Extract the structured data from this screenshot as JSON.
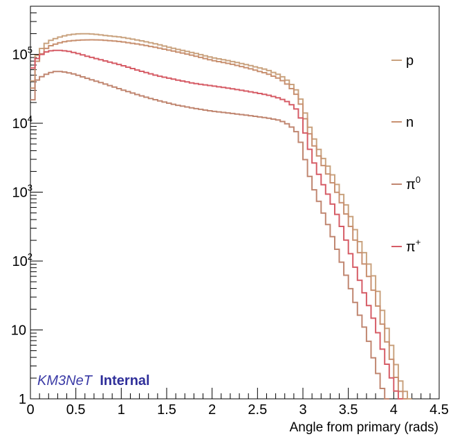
{
  "chart_data": {
    "type": "line",
    "step": true,
    "xlabel": "Angle from primary (rads)",
    "ylabel": "",
    "xlim": [
      0,
      4.5
    ],
    "ylim": [
      1,
      500000
    ],
    "yscale": "log",
    "grid": false,
    "legend_position": "right",
    "watermark": {
      "part1": "KM3NeT",
      "part2": "Internal"
    },
    "x_ticks": [
      {
        "value": 0,
        "label": "0"
      },
      {
        "value": 0.5,
        "label": "0.5"
      },
      {
        "value": 1,
        "label": "1"
      },
      {
        "value": 1.5,
        "label": "1.5"
      },
      {
        "value": 2,
        "label": "2"
      },
      {
        "value": 2.5,
        "label": "2.5"
      },
      {
        "value": 3,
        "label": "3"
      },
      {
        "value": 3.5,
        "label": "3.5"
      },
      {
        "value": 4,
        "label": "4"
      },
      {
        "value": 4.5,
        "label": "4.5"
      }
    ],
    "y_ticks": [
      {
        "value": 1,
        "label": "1",
        "sup": ""
      },
      {
        "value": 10,
        "label": "10",
        "sup": ""
      },
      {
        "value": 100,
        "label": "10",
        "sup": "2"
      },
      {
        "value": 1000,
        "label": "10",
        "sup": "3"
      },
      {
        "value": 10000,
        "label": "10",
        "sup": "4"
      },
      {
        "value": 100000,
        "label": "10",
        "sup": "5"
      }
    ],
    "bin_width": 0.05,
    "series": [
      {
        "name": "p",
        "sup": "",
        "color": "#c9a27e",
        "points": [
          [
            0,
            20000
          ],
          [
            0.05,
            85000
          ],
          [
            0.1,
            110000
          ],
          [
            0.15,
            135000
          ],
          [
            0.2,
            155000
          ],
          [
            0.3,
            175000
          ],
          [
            0.4,
            190000
          ],
          [
            0.5,
            198000
          ],
          [
            0.6,
            200000
          ],
          [
            0.7,
            197000
          ],
          [
            0.8,
            190000
          ],
          [
            1.0,
            178000
          ],
          [
            1.2,
            160000
          ],
          [
            1.4,
            140000
          ],
          [
            1.6,
            120000
          ],
          [
            1.8,
            105000
          ],
          [
            2.0,
            90000
          ],
          [
            2.2,
            80000
          ],
          [
            2.4,
            70000
          ],
          [
            2.6,
            60000
          ],
          [
            2.75,
            50000
          ],
          [
            2.85,
            40000
          ],
          [
            2.95,
            28000
          ],
          [
            3.0,
            18000
          ],
          [
            3.05,
            11000
          ],
          [
            3.1,
            7000
          ],
          [
            3.15,
            5000
          ],
          [
            3.2,
            3500
          ],
          [
            3.3,
            2100
          ],
          [
            3.4,
            1100
          ],
          [
            3.5,
            550
          ],
          [
            3.6,
            230
          ],
          [
            3.7,
            110
          ],
          [
            3.8,
            50
          ],
          [
            3.9,
            14
          ],
          [
            4.0,
            4.5
          ],
          [
            4.05,
            2.2
          ],
          [
            4.1,
            1.5
          ],
          [
            4.15,
            1.1
          ],
          [
            4.2,
            0.5
          ]
        ]
      },
      {
        "name": "n",
        "sup": "",
        "color": "#c89070",
        "points": [
          [
            0,
            15000
          ],
          [
            0.05,
            70000
          ],
          [
            0.1,
            90000
          ],
          [
            0.15,
            115000
          ],
          [
            0.2,
            130000
          ],
          [
            0.3,
            145000
          ],
          [
            0.4,
            155000
          ],
          [
            0.5,
            160000
          ],
          [
            0.6,
            162000
          ],
          [
            0.7,
            163000
          ],
          [
            0.8,
            161000
          ],
          [
            1.0,
            153000
          ],
          [
            1.2,
            140000
          ],
          [
            1.4,
            125000
          ],
          [
            1.6,
            110000
          ],
          [
            1.8,
            96000
          ],
          [
            2.0,
            82000
          ],
          [
            2.2,
            73000
          ],
          [
            2.4,
            63000
          ],
          [
            2.6,
            53000
          ],
          [
            2.75,
            44000
          ],
          [
            2.85,
            35000
          ],
          [
            2.95,
            24000
          ],
          [
            3.0,
            15000
          ],
          [
            3.05,
            9000
          ],
          [
            3.1,
            5500
          ],
          [
            3.15,
            4000
          ],
          [
            3.2,
            2800
          ],
          [
            3.3,
            1600
          ],
          [
            3.4,
            850
          ],
          [
            3.5,
            400
          ],
          [
            3.6,
            160
          ],
          [
            3.7,
            75
          ],
          [
            3.8,
            30
          ],
          [
            3.9,
            9
          ],
          [
            4.0,
            2.8
          ],
          [
            4.05,
            1.5
          ],
          [
            4.1,
            1.1
          ],
          [
            4.15,
            0.5
          ]
        ]
      },
      {
        "name": "π",
        "sup": "0",
        "color": "#c08670",
        "points": [
          [
            0,
            12000
          ],
          [
            0.05,
            40000
          ],
          [
            0.1,
            45000
          ],
          [
            0.15,
            50000
          ],
          [
            0.2,
            53000
          ],
          [
            0.25,
            56000
          ],
          [
            0.3,
            57000
          ],
          [
            0.4,
            55000
          ],
          [
            0.5,
            51000
          ],
          [
            0.6,
            46000
          ],
          [
            0.8,
            38000
          ],
          [
            1.0,
            31000
          ],
          [
            1.2,
            25500
          ],
          [
            1.4,
            21500
          ],
          [
            1.6,
            18500
          ],
          [
            1.8,
            16500
          ],
          [
            2.0,
            15000
          ],
          [
            2.2,
            14000
          ],
          [
            2.4,
            13000
          ],
          [
            2.6,
            12000
          ],
          [
            2.75,
            11000
          ],
          [
            2.85,
            9500
          ],
          [
            2.95,
            7000
          ],
          [
            3.0,
            4000
          ],
          [
            3.05,
            2200
          ],
          [
            3.1,
            1300
          ],
          [
            3.15,
            900
          ],
          [
            3.2,
            600
          ],
          [
            3.3,
            280
          ],
          [
            3.4,
            120
          ],
          [
            3.5,
            50
          ],
          [
            3.6,
            20
          ],
          [
            3.7,
            9
          ],
          [
            3.8,
            3
          ],
          [
            3.9,
            1.1
          ],
          [
            3.95,
            0.5
          ]
        ]
      },
      {
        "name": "π",
        "sup": "+",
        "color": "#d65c66",
        "points": [
          [
            0,
            50000
          ],
          [
            0.05,
            80000
          ],
          [
            0.1,
            95000
          ],
          [
            0.15,
            105000
          ],
          [
            0.2,
            112000
          ],
          [
            0.3,
            115000
          ],
          [
            0.4,
            112000
          ],
          [
            0.5,
            105000
          ],
          [
            0.6,
            96000
          ],
          [
            0.8,
            82000
          ],
          [
            1.0,
            70000
          ],
          [
            1.2,
            58000
          ],
          [
            1.4,
            49000
          ],
          [
            1.6,
            43000
          ],
          [
            1.8,
            38000
          ],
          [
            2.0,
            35000
          ],
          [
            2.2,
            32000
          ],
          [
            2.4,
            29000
          ],
          [
            2.6,
            26000
          ],
          [
            2.75,
            23000
          ],
          [
            2.85,
            20000
          ],
          [
            2.95,
            15000
          ],
          [
            3.0,
            9500
          ],
          [
            3.05,
            5500
          ],
          [
            3.1,
            3200
          ],
          [
            3.15,
            2200
          ],
          [
            3.2,
            1500
          ],
          [
            3.3,
            800
          ],
          [
            3.4,
            400
          ],
          [
            3.5,
            160
          ],
          [
            3.6,
            65
          ],
          [
            3.7,
            28
          ],
          [
            3.8,
            12
          ],
          [
            3.9,
            4
          ],
          [
            4.0,
            1.6
          ],
          [
            4.05,
            1.05
          ],
          [
            4.1,
            0.5
          ]
        ]
      }
    ]
  }
}
